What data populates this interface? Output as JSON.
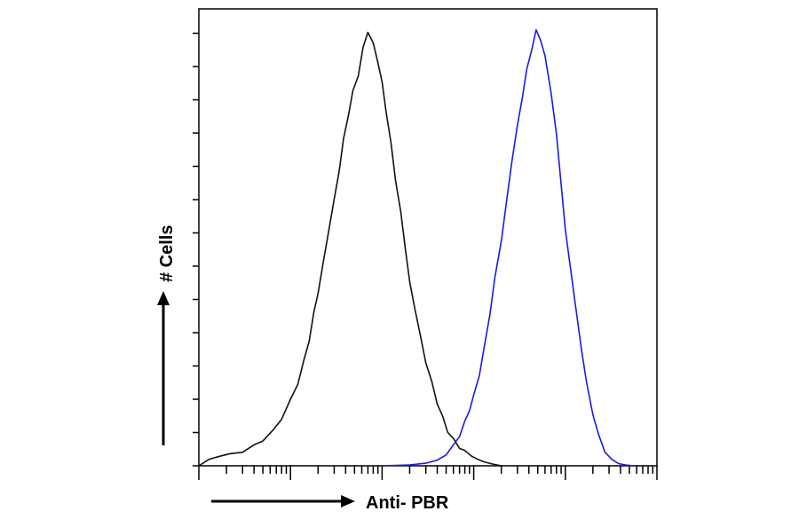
{
  "chart_data": {
    "type": "line",
    "title": "",
    "xlabel": "Anti- PBR",
    "ylabel": "# Cells",
    "x_scale": "log",
    "xlim": [
      1,
      100000
    ],
    "ylim": [
      0,
      100
    ],
    "grid": false,
    "legend": "none",
    "series": [
      {
        "color": "#111111",
        "x": [
          1,
          1.3,
          1.7,
          2.2,
          3,
          4,
          5,
          6.5,
          8,
          10,
          12,
          14,
          16,
          18,
          20,
          23,
          26,
          30,
          34,
          38,
          43,
          48,
          55,
          62,
          70,
          80,
          90,
          100,
          110,
          125,
          140,
          160,
          180,
          200,
          230,
          260,
          300,
          350,
          400,
          460,
          520,
          600,
          700,
          800,
          950,
          1100,
          1300,
          1600,
          2000
        ],
        "y": [
          0,
          1.5,
          2.2,
          2.8,
          3.4,
          4.5,
          6,
          8,
          11,
          15,
          19,
          24,
          29,
          35,
          40,
          47,
          54,
          61,
          68,
          75,
          81,
          86,
          90,
          96,
          100,
          97,
          93,
          88,
          82,
          74,
          66,
          58,
          50,
          42,
          36,
          30,
          24,
          19,
          14.5,
          11,
          8,
          6,
          4.3,
          3.2,
          2.2,
          1.5,
          0.9,
          0.4,
          0
        ]
      },
      {
        "color": "#1a1ae6",
        "x": [
          100,
          200,
          300,
          400,
          500,
          600,
          700,
          800,
          900,
          1000,
          1150,
          1300,
          1500,
          1700,
          2000,
          2300,
          2600,
          3000,
          3400,
          3800,
          4300,
          4800,
          5400,
          6000,
          7000,
          8000,
          9000,
          10000,
          11500,
          13000,
          15000,
          17000,
          20000,
          23000,
          27000,
          32000,
          38000,
          45000,
          55000
        ],
        "y": [
          0,
          0.2,
          0.6,
          1.3,
          2.5,
          4.5,
          7,
          10,
          13,
          16,
          21,
          27,
          35,
          43,
          52,
          61,
          70,
          78,
          85,
          91,
          96,
          100,
          98,
          94,
          86,
          76,
          65,
          54,
          45,
          36,
          27,
          19,
          12,
          7,
          3.5,
          1.5,
          0.5,
          0.2,
          0
        ]
      }
    ]
  }
}
